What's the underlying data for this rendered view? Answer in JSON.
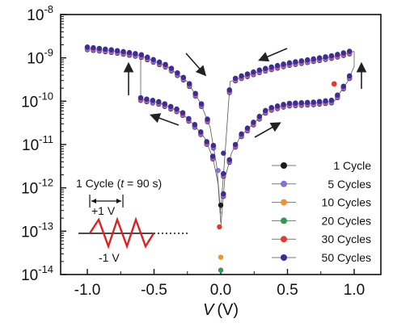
{
  "chart_data": {
    "type": "scatter",
    "title": "",
    "xlabel": "V (V)",
    "xlabel_var": "V",
    "xlabel_unit": "(V)",
    "ylabel": "",
    "y_scale": "log",
    "xlim": [
      -1.2,
      1.2
    ],
    "ylim_exponent": [
      -14,
      -8
    ],
    "x_ticks": [
      -1.0,
      -0.5,
      0.0,
      0.5,
      1.0
    ],
    "x_tick_labels": [
      "-1.0",
      "-0.5",
      "0.0",
      "0.5",
      "1.0"
    ],
    "y_ticks": [
      -14,
      -13,
      -12,
      -11,
      -10,
      -9,
      -8
    ],
    "y_tick_exponent_labels": [
      "-14",
      "-13",
      "-12",
      "-11",
      "-10",
      "-9",
      "-8"
    ],
    "y_tick_base": "10",
    "grid": false,
    "legend_position": "bottom-right",
    "series": [
      {
        "name": "1 Cycle",
        "color": "#1a1a1a"
      },
      {
        "name": "5 Cycles",
        "color": "#8a6fd8"
      },
      {
        "name": "10 Cycles",
        "color": "#f0922e"
      },
      {
        "name": "20 Cycles",
        "color": "#2e9a52"
      },
      {
        "name": "30 Cycles",
        "color": "#e23b2e"
      },
      {
        "name": "50 Cycles",
        "color": "#3b2e9c"
      }
    ],
    "curve_points_log10_current": {
      "upper_negative": [
        [
          -1.0,
          -8.78
        ],
        [
          -0.8,
          -8.85
        ],
        [
          -0.6,
          -8.95
        ],
        [
          -0.4,
          -9.2
        ],
        [
          -0.25,
          -9.55
        ],
        [
          -0.15,
          -10.05
        ],
        [
          -0.08,
          -10.6
        ],
        [
          -0.03,
          -11.5
        ],
        [
          0.0,
          -12.6
        ]
      ],
      "lower_negative": [
        [
          -0.6,
          -9.95
        ],
        [
          -0.45,
          -10.05
        ],
        [
          -0.3,
          -10.25
        ],
        [
          -0.2,
          -10.55
        ],
        [
          -0.12,
          -10.85
        ],
        [
          -0.06,
          -11.3
        ],
        [
          -0.02,
          -11.9
        ],
        [
          0.0,
          -12.8
        ]
      ],
      "upper_positive": [
        [
          0.0,
          -12.5
        ],
        [
          0.03,
          -11.3
        ],
        [
          0.07,
          -9.55
        ],
        [
          0.15,
          -9.45
        ],
        [
          0.3,
          -9.3
        ],
        [
          0.5,
          -9.15
        ],
        [
          0.7,
          -9.05
        ],
        [
          0.85,
          -8.97
        ],
        [
          1.0,
          -8.85
        ]
      ],
      "lower_positive": [
        [
          0.0,
          -12.9
        ],
        [
          0.03,
          -11.8
        ],
        [
          0.08,
          -11.2
        ],
        [
          0.15,
          -10.8
        ],
        [
          0.25,
          -10.5
        ],
        [
          0.35,
          -10.2
        ],
        [
          0.5,
          -10.08
        ],
        [
          0.7,
          -10.05
        ],
        [
          0.85,
          -10.0
        ],
        [
          0.95,
          -9.55
        ],
        [
          1.0,
          -9.2
        ]
      ]
    },
    "annotations": {
      "inset_label": "1 Cycle (",
      "inset_label_var": "t",
      "inset_label_rest": " = 90 s)",
      "plus_voltage": "+1 V",
      "minus_voltage": "-1 V"
    }
  }
}
